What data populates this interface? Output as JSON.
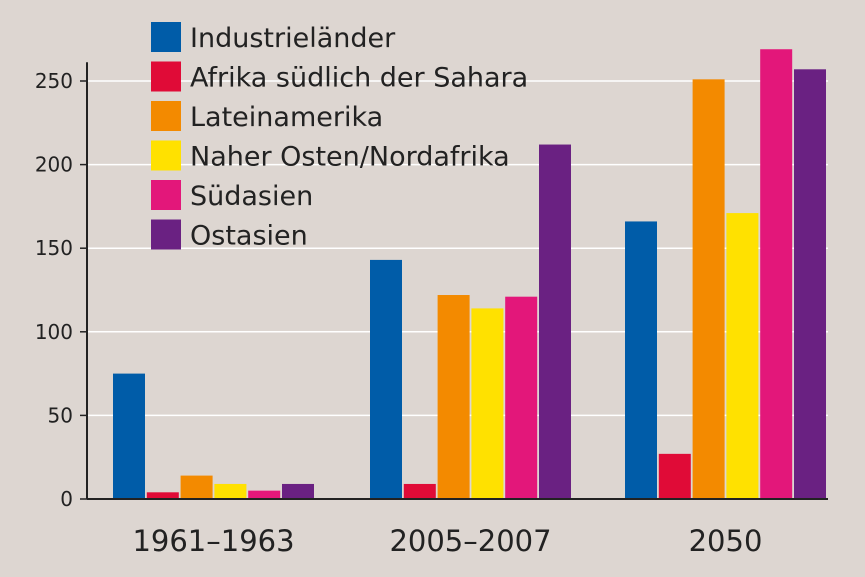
{
  "chart_data": {
    "type": "bar",
    "title": "",
    "xlabel": "",
    "ylabel": "",
    "ylim": [
      0,
      260
    ],
    "yticks": [
      0,
      50,
      100,
      150,
      200,
      250
    ],
    "grid": true,
    "legend_position": "top-left",
    "categories": [
      "1961–1963",
      "2005–2007",
      "2050"
    ],
    "series": [
      {
        "name": "Industrieländer",
        "color": "#005ca8",
        "values": [
          75,
          143,
          166
        ]
      },
      {
        "name": "Afrika südlich der Sahara",
        "color": "#e00b37",
        "values": [
          4,
          9,
          27
        ]
      },
      {
        "name": "Lateinamerika",
        "color": "#f38a00",
        "values": [
          14,
          122,
          251
        ]
      },
      {
        "name": "Naher Osten/Nordafrika",
        "color": "#ffe100",
        "values": [
          9,
          114,
          171
        ]
      },
      {
        "name": "Südasien",
        "color": "#e3177a",
        "values": [
          5,
          121,
          269
        ]
      },
      {
        "name": "Ostasien",
        "color": "#6a2182",
        "values": [
          9,
          212,
          257
        ]
      }
    ]
  }
}
